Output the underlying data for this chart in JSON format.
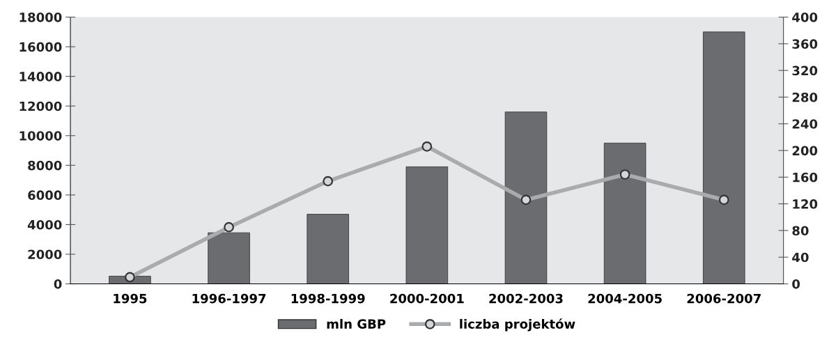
{
  "chart_data": {
    "type": "bar",
    "categories": [
      "1995",
      "1996-1997",
      "1998-1999",
      "2000-2001",
      "2002-2003",
      "2004-2005",
      "2006-2007"
    ],
    "series": [
      {
        "name": "mln GBP",
        "color": "#6b6c70",
        "values": [
          520,
          3450,
          4700,
          7900,
          11600,
          9500,
          17000
        ]
      },
      {
        "name": "liczba projektów",
        "type": "line",
        "axis": "y2",
        "color": "#aaabad",
        "marker": "circle",
        "values": [
          10,
          85,
          154,
          206,
          126,
          164,
          126
        ]
      }
    ],
    "ylim": [
      0,
      18000
    ],
    "yticks": [
      0,
      2000,
      4000,
      6000,
      8000,
      10000,
      12000,
      14000,
      16000,
      18000
    ],
    "y2lim": [
      0,
      400
    ],
    "y2ticks": [
      0,
      40,
      80,
      120,
      160,
      200,
      240,
      280,
      320,
      360,
      400
    ],
    "grid": false,
    "legend": "bottom"
  }
}
